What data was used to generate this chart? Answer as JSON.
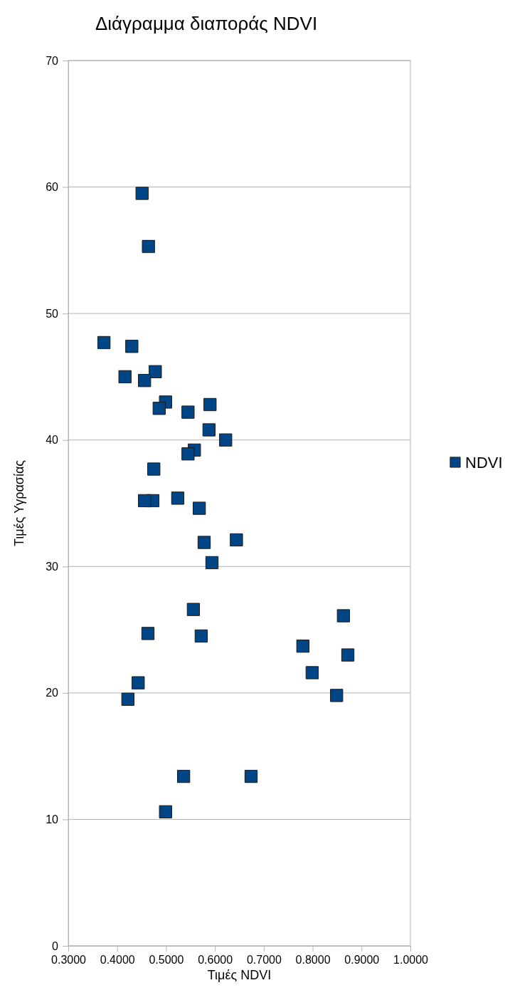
{
  "chart_data": {
    "type": "scatter",
    "title": "Διάγραμμα διαποράς NDVI",
    "xlabel": "Τιμές NDVI",
    "ylabel": "Τιμές Υγρασίας",
    "xlim": [
      0.3,
      1.0
    ],
    "xticks": [
      {
        "value": 0.3,
        "label": "0.3000"
      },
      {
        "value": 0.4,
        "label": "0.4000"
      },
      {
        "value": 0.5,
        "label": "0.5000"
      },
      {
        "value": 0.6,
        "label": "0.6000"
      },
      {
        "value": 0.7,
        "label": "0.7000"
      },
      {
        "value": 0.8,
        "label": "0.8000"
      },
      {
        "value": 0.9,
        "label": "0.9000"
      },
      {
        "value": 1.0,
        "label": "1.0000"
      }
    ],
    "ylim": [
      0,
      70
    ],
    "yticks": [
      0,
      10,
      20,
      30,
      40,
      50,
      60,
      70
    ],
    "grid": "y",
    "legend": "right",
    "marker": "square",
    "series": [
      {
        "name": "NDVI",
        "color": "#004586",
        "x": [
          0.451,
          0.464,
          0.373,
          0.43,
          0.416,
          0.478,
          0.456,
          0.499,
          0.486,
          0.545,
          0.59,
          0.588,
          0.622,
          0.558,
          0.545,
          0.475,
          0.473,
          0.456,
          0.524,
          0.568,
          0.578,
          0.644,
          0.594,
          0.556,
          0.463,
          0.572,
          0.78,
          0.863,
          0.872,
          0.799,
          0.849,
          0.443,
          0.422,
          0.536,
          0.674,
          0.499
        ],
        "values": [
          59.5,
          55.3,
          47.7,
          47.4,
          45.0,
          45.4,
          44.7,
          43.0,
          42.5,
          42.2,
          42.8,
          40.8,
          40.0,
          39.2,
          38.9,
          37.7,
          35.2,
          35.2,
          35.4,
          34.6,
          31.9,
          32.1,
          30.3,
          26.6,
          24.7,
          24.5,
          23.7,
          26.1,
          23.0,
          21.6,
          19.8,
          20.8,
          19.5,
          13.4,
          13.4,
          10.6
        ]
      }
    ]
  }
}
